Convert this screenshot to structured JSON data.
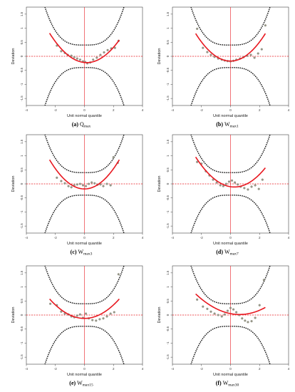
{
  "chart_data": [
    {
      "type": "scatter",
      "panel_letter": "(a)",
      "caption_main": "Q",
      "caption_sub": "max",
      "xlabel": "Unit normal quantile",
      "ylabel": "Deviation",
      "xlim": [
        -4,
        4
      ],
      "ylim": [
        -1.75,
        1.75
      ],
      "xticks": [
        -4,
        -2,
        0,
        2,
        4
      ],
      "yticks": [
        -1.5,
        -1.0,
        -0.5,
        0.0,
        0.5,
        1.0,
        1.5
      ],
      "points": [
        {
          "x": -1.9,
          "y": 0.38
        },
        {
          "x": -1.6,
          "y": 0.18
        },
        {
          "x": -1.35,
          "y": 0.12
        },
        {
          "x": -1.15,
          "y": 0.05
        },
        {
          "x": -0.9,
          "y": 0.02
        },
        {
          "x": -0.7,
          "y": -0.03
        },
        {
          "x": -0.5,
          "y": -0.08
        },
        {
          "x": -0.3,
          "y": -0.12
        },
        {
          "x": -0.1,
          "y": -0.18
        },
        {
          "x": 0.05,
          "y": -0.2
        },
        {
          "x": 0.2,
          "y": -0.25
        },
        {
          "x": 0.4,
          "y": -0.22
        },
        {
          "x": 0.6,
          "y": -0.12
        },
        {
          "x": 0.85,
          "y": -0.05
        },
        {
          "x": 1.1,
          "y": 0.05
        },
        {
          "x": 1.35,
          "y": 0.14
        },
        {
          "x": 1.6,
          "y": 0.22
        },
        {
          "x": 1.85,
          "y": 0.28
        },
        {
          "x": 2.1,
          "y": 0.3
        },
        {
          "x": 2.35,
          "y": 0.55
        }
      ],
      "fit": {
        "a": 0.16,
        "b": -0.05,
        "c": -0.22,
        "x_range": [
          -2.4,
          2.4
        ]
      },
      "band": {
        "c0": 0.4,
        "k": 0.055,
        "n": 3.2
      }
    },
    {
      "type": "scatter",
      "panel_letter": "(b)",
      "caption_main": "W",
      "caption_sub": "max1",
      "xlabel": "Unit normal quantile",
      "ylabel": "Deviation",
      "xlim": [
        -4,
        4
      ],
      "ylim": [
        -1.75,
        1.75
      ],
      "xticks": [
        -4,
        -2,
        0,
        2,
        4
      ],
      "yticks": [
        -1.5,
        -1.0,
        -0.5,
        0.0,
        0.5,
        1.0,
        1.5
      ],
      "points": [
        {
          "x": -2.3,
          "y": 0.98
        },
        {
          "x": -1.9,
          "y": 0.3
        },
        {
          "x": -1.6,
          "y": 0.15
        },
        {
          "x": -1.35,
          "y": 0.05
        },
        {
          "x": -1.1,
          "y": -0.02
        },
        {
          "x": -0.85,
          "y": -0.08
        },
        {
          "x": -0.6,
          "y": -0.12
        },
        {
          "x": -0.4,
          "y": -0.15
        },
        {
          "x": -0.2,
          "y": -0.17
        },
        {
          "x": 0.0,
          "y": -0.18
        },
        {
          "x": 0.2,
          "y": -0.16
        },
        {
          "x": 0.4,
          "y": -0.12
        },
        {
          "x": 0.65,
          "y": -0.08
        },
        {
          "x": 0.9,
          "y": -0.03
        },
        {
          "x": 1.15,
          "y": 0.02
        },
        {
          "x": 1.4,
          "y": 0.05
        },
        {
          "x": 1.65,
          "y": -0.05
        },
        {
          "x": 1.9,
          "y": 0.1
        },
        {
          "x": 2.15,
          "y": 0.25
        },
        {
          "x": 2.4,
          "y": 1.1
        }
      ],
      "fit": {
        "a": 0.17,
        "b": 0.0,
        "c": -0.17,
        "x_range": [
          -2.4,
          2.4
        ]
      },
      "band": {
        "c0": 0.4,
        "k": 0.055,
        "n": 3.2
      }
    },
    {
      "type": "scatter",
      "panel_letter": "(c)",
      "caption_main": "W",
      "caption_sub": "max3",
      "xlabel": "Unit normal quantile",
      "ylabel": "Deviation",
      "xlim": [
        -4,
        4
      ],
      "ylim": [
        -1.75,
        1.75
      ],
      "xticks": [
        -4,
        -2,
        0,
        2,
        4
      ],
      "yticks": [
        -1.5,
        -1.0,
        -0.5,
        0.0,
        0.5,
        1.0,
        1.5
      ],
      "points": [
        {
          "x": -1.9,
          "y": 0.22
        },
        {
          "x": -1.6,
          "y": 0.1
        },
        {
          "x": -1.35,
          "y": 0.02
        },
        {
          "x": -1.1,
          "y": -0.08
        },
        {
          "x": -0.9,
          "y": -0.12
        },
        {
          "x": -0.7,
          "y": -0.05
        },
        {
          "x": -0.5,
          "y": -0.02
        },
        {
          "x": -0.3,
          "y": 0.0
        },
        {
          "x": -0.1,
          "y": -0.05
        },
        {
          "x": 0.1,
          "y": -0.08
        },
        {
          "x": 0.3,
          "y": 0.0
        },
        {
          "x": 0.5,
          "y": 0.05
        },
        {
          "x": 0.7,
          "y": 0.02
        },
        {
          "x": 0.9,
          "y": -0.03
        },
        {
          "x": 1.1,
          "y": -0.02
        },
        {
          "x": 1.3,
          "y": -0.08
        },
        {
          "x": 1.55,
          "y": 0.0
        },
        {
          "x": 1.8,
          "y": -0.05
        },
        {
          "x": 2.0,
          "y": 0.95
        },
        {
          "x": 2.3,
          "y": 0.75
        }
      ],
      "fit": {
        "a": 0.18,
        "b": 0.0,
        "c": -0.18,
        "x_range": [
          -2.4,
          2.4
        ]
      },
      "band": {
        "c0": 0.4,
        "k": 0.055,
        "n": 3.2
      }
    },
    {
      "type": "scatter",
      "panel_letter": "(d)",
      "caption_main": "W",
      "caption_sub": "max7",
      "xlabel": "Unit normal quantile",
      "ylabel": "Deviation",
      "xlim": [
        -4,
        4
      ],
      "ylim": [
        -1.75,
        1.75
      ],
      "xticks": [
        -4,
        -2,
        0,
        2,
        4
      ],
      "yticks": [
        -1.5,
        -1.0,
        -0.5,
        0.0,
        0.5,
        1.0,
        1.5
      ],
      "points": [
        {
          "x": -2.3,
          "y": 0.78
        },
        {
          "x": -2.0,
          "y": 0.72
        },
        {
          "x": -1.7,
          "y": 0.45
        },
        {
          "x": -1.45,
          "y": 0.3
        },
        {
          "x": -1.2,
          "y": 0.15
        },
        {
          "x": -0.95,
          "y": 0.05
        },
        {
          "x": -0.7,
          "y": -0.05
        },
        {
          "x": -0.5,
          "y": -0.08
        },
        {
          "x": -0.3,
          "y": 0.0
        },
        {
          "x": -0.1,
          "y": 0.08
        },
        {
          "x": 0.1,
          "y": 0.12
        },
        {
          "x": 0.3,
          "y": 0.05
        },
        {
          "x": 0.5,
          "y": -0.02
        },
        {
          "x": 0.7,
          "y": -0.1
        },
        {
          "x": 0.95,
          "y": -0.15
        },
        {
          "x": 1.2,
          "y": -0.2
        },
        {
          "x": 1.45,
          "y": -0.1
        },
        {
          "x": 1.7,
          "y": -0.05
        },
        {
          "x": 1.95,
          "y": -0.18
        },
        {
          "x": 2.2,
          "y": 0.15
        }
      ],
      "fit": {
        "a": 0.15,
        "b": -0.08,
        "c": -0.1,
        "x_range": [
          -2.4,
          2.4
        ]
      },
      "band": {
        "c0": 0.4,
        "k": 0.055,
        "n": 3.2
      }
    },
    {
      "type": "scatter",
      "panel_letter": "(e)",
      "caption_main": "W",
      "caption_sub": "max15",
      "xlabel": "Unit normal quantile",
      "ylabel": "Deviation",
      "xlim": [
        -4,
        4
      ],
      "ylim": [
        -1.75,
        1.75
      ],
      "xticks": [
        -4,
        -2,
        0,
        2,
        4
      ],
      "yticks": [
        -1.5,
        -1.0,
        -0.5,
        0.0,
        0.5,
        1.0,
        1.5
      ],
      "points": [
        {
          "x": -2.35,
          "y": 0.4
        },
        {
          "x": -1.9,
          "y": 0.35
        },
        {
          "x": -1.6,
          "y": 0.12
        },
        {
          "x": -1.35,
          "y": 0.05
        },
        {
          "x": -1.1,
          "y": 0.02
        },
        {
          "x": -0.9,
          "y": -0.05
        },
        {
          "x": -0.7,
          "y": -0.08
        },
        {
          "x": -0.5,
          "y": -0.02
        },
        {
          "x": -0.3,
          "y": 0.02
        },
        {
          "x": -0.1,
          "y": -0.1
        },
        {
          "x": 0.1,
          "y": 0.05
        },
        {
          "x": 0.3,
          "y": -0.12
        },
        {
          "x": 0.55,
          "y": -0.18
        },
        {
          "x": 0.8,
          "y": -0.2
        },
        {
          "x": 1.05,
          "y": -0.15
        },
        {
          "x": 1.3,
          "y": -0.12
        },
        {
          "x": 1.55,
          "y": -0.05
        },
        {
          "x": 1.8,
          "y": 0.05
        },
        {
          "x": 2.05,
          "y": 0.1
        },
        {
          "x": 2.35,
          "y": 1.45
        }
      ],
      "fit": {
        "a": 0.12,
        "b": 0.0,
        "c": -0.12,
        "x_range": [
          -2.4,
          2.4
        ]
      },
      "band": {
        "c0": 0.4,
        "k": 0.055,
        "n": 3.2
      }
    },
    {
      "type": "scatter",
      "panel_letter": "(f)",
      "caption_main": "W",
      "caption_sub": "max30",
      "xlabel": "Unit normal quantile",
      "ylabel": "Deviation",
      "xlim": [
        -4,
        4
      ],
      "ylim": [
        -1.75,
        1.75
      ],
      "xticks": [
        -4,
        -2,
        0,
        2,
        4
      ],
      "yticks": [
        -1.5,
        -1.0,
        -0.5,
        0.0,
        0.5,
        1.0,
        1.5
      ],
      "points": [
        {
          "x": -2.3,
          "y": 0.55
        },
        {
          "x": -1.9,
          "y": 0.3
        },
        {
          "x": -1.6,
          "y": 0.22
        },
        {
          "x": -1.35,
          "y": 0.12
        },
        {
          "x": -1.1,
          "y": 0.05
        },
        {
          "x": -0.85,
          "y": 0.0
        },
        {
          "x": -0.6,
          "y": -0.05
        },
        {
          "x": -0.4,
          "y": 0.02
        },
        {
          "x": -0.2,
          "y": 0.15
        },
        {
          "x": 0.0,
          "y": 0.25
        },
        {
          "x": 0.2,
          "y": 0.2
        },
        {
          "x": 0.4,
          "y": 0.1
        },
        {
          "x": 0.6,
          "y": 0.0
        },
        {
          "x": 0.8,
          "y": -0.12
        },
        {
          "x": 1.0,
          "y": -0.2
        },
        {
          "x": 1.2,
          "y": -0.25
        },
        {
          "x": 1.45,
          "y": -0.22
        },
        {
          "x": 1.7,
          "y": -0.1
        },
        {
          "x": 2.0,
          "y": 0.35
        },
        {
          "x": 2.3,
          "y": 1.25
        }
      ],
      "fit": {
        "a": 0.08,
        "b": -0.1,
        "c": 0.05,
        "x_range": [
          -2.4,
          2.4
        ]
      },
      "band": {
        "c0": 0.4,
        "k": 0.055,
        "n": 3.2
      }
    }
  ],
  "colors": {
    "fit_line": "#e8171f",
    "reference_line": "#e8171f",
    "band": "#111111",
    "points": "#9a9a8a",
    "axis": "#444444",
    "background": "#ffffff"
  }
}
